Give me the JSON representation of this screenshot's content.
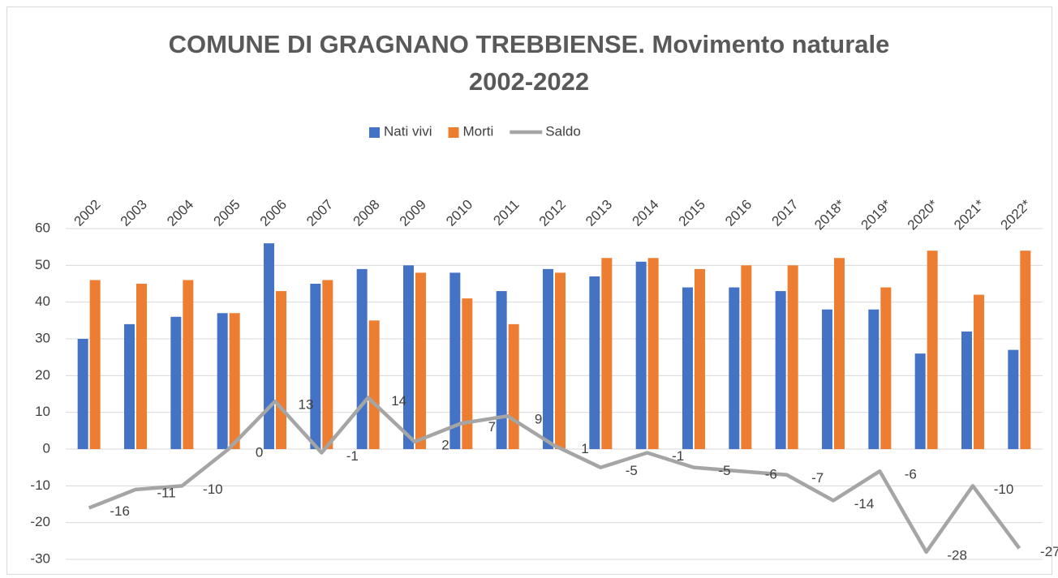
{
  "chart_data": {
    "type": "bar_line",
    "title": "COMUNE DI GRAGNANO TREBBIENSE. Movimento naturale 2002-2022",
    "categories": [
      "2002",
      "2003",
      "2004",
      "2005",
      "2006",
      "2007",
      "2008",
      "2009",
      "2010",
      "2011",
      "2012",
      "2013",
      "2014",
      "2015",
      "2016",
      "2017",
      "2018*",
      "2019*",
      "2020*",
      "2021*",
      "2022*"
    ],
    "series": [
      {
        "name": "Nati vivi",
        "type": "bar",
        "color": "#4472c4",
        "values": [
          30,
          34,
          36,
          37,
          56,
          45,
          49,
          50,
          48,
          43,
          49,
          47,
          51,
          44,
          44,
          43,
          38,
          38,
          26,
          32,
          27
        ]
      },
      {
        "name": "Morti",
        "type": "bar",
        "color": "#ed7d31",
        "values": [
          46,
          45,
          46,
          37,
          43,
          46,
          35,
          48,
          41,
          34,
          48,
          52,
          52,
          49,
          50,
          50,
          52,
          44,
          54,
          42,
          54
        ]
      },
      {
        "name": "Saldo",
        "type": "line",
        "color": "#a5a5a5",
        "values": [
          -16,
          -11,
          -10,
          0,
          13,
          -1,
          14,
          2,
          7,
          9,
          1,
          -5,
          -1,
          -5,
          -6,
          -7,
          -14,
          -6,
          -28,
          -10,
          -27
        ],
        "data_labels": true
      }
    ],
    "ylim": [
      -30,
      60
    ],
    "yticks": [
      -30,
      -20,
      -10,
      0,
      10,
      20,
      30,
      40,
      50,
      60
    ],
    "grid": true,
    "legend": "top"
  }
}
